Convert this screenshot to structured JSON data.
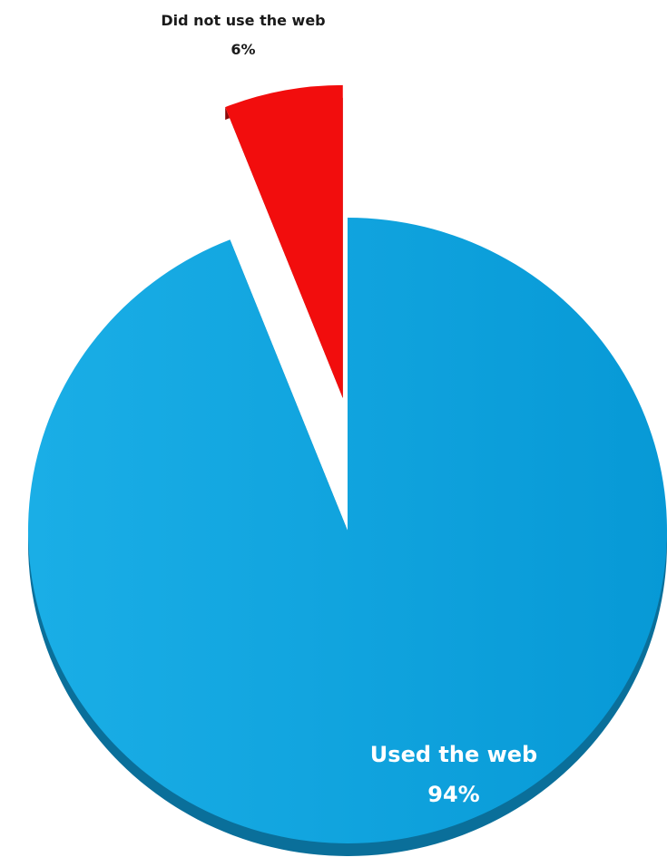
{
  "chart_data": {
    "type": "pie",
    "style": "3d-exploded",
    "slices": [
      {
        "label": "Used the web",
        "value": 94,
        "value_label": "94%",
        "color": "#0aa3df",
        "side_color": "#0a6f9a"
      },
      {
        "label": "Did not use the web",
        "value": 6,
        "value_label": "6%",
        "color": "#f20d0d",
        "side_color": "#8c0a0a",
        "exploded": true
      }
    ],
    "title": "",
    "legend": "none"
  }
}
